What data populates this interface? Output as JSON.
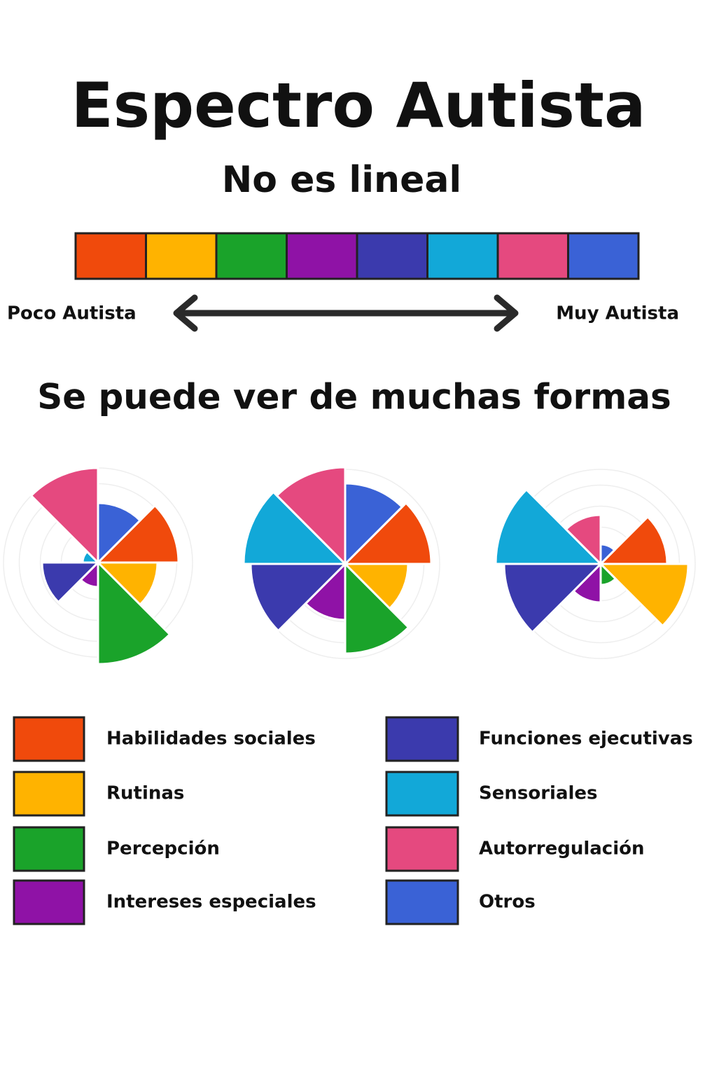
{
  "title": "Espectro Autista",
  "subtitle": "No es lineal",
  "scale_labels": [
    "Poco Autista",
    "Muy Autista"
  ],
  "heading": "Se puede ver de muchas formas",
  "legend": [
    {
      "name": "Habilidades sociales",
      "color": "#f04a0c"
    },
    {
      "name": "Rutinas",
      "color": "#ffb300"
    },
    {
      "name": "Percepción",
      "color": "#1aa32a"
    },
    {
      "name": "Intereses especiales",
      "color": "#8f12a6"
    },
    {
      "name": "Funciones ejecutivas",
      "color": "#3b3aad"
    },
    {
      "name": "Sensoriales",
      "color": "#12a8d8"
    },
    {
      "name": "Autorregulación",
      "color": "#e5497f"
    },
    {
      "name": "Otros",
      "color": "#3a62d6"
    }
  ],
  "chart_data": [
    {
      "type": "polar",
      "values": [
        115,
        85,
        145,
        35,
        80,
        22,
        135,
        85
      ],
      "ylim": [
        0,
        150
      ]
    },
    {
      "type": "polar",
      "values": [
        123,
        90,
        128,
        80,
        135,
        145,
        138,
        115
      ],
      "ylim": [
        0,
        150
      ]
    },
    {
      "type": "polar",
      "values": [
        95,
        125,
        30,
        55,
        138,
        150,
        70,
        28
      ],
      "ylim": [
        0,
        150
      ]
    }
  ]
}
